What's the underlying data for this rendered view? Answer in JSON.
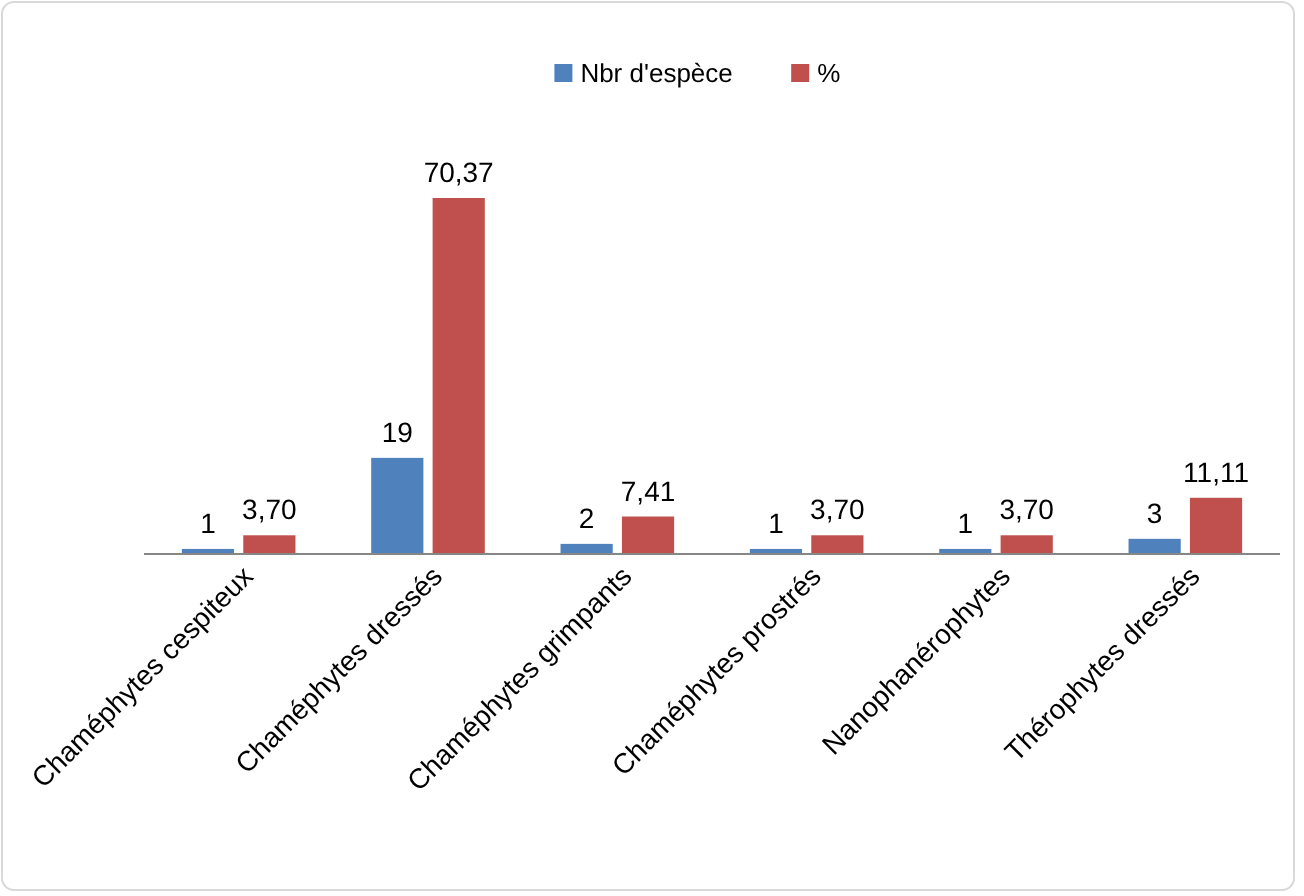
{
  "chart_data": {
    "type": "bar",
    "categories": [
      "Chaméphytes cespiteux",
      "Chaméphytes dressés",
      "Chaméphytes grimpants",
      "Chaméphytes prostrés",
      "Nanophanérophytes",
      "Thérophytes dressés"
    ],
    "series": [
      {
        "name": "Nbr d'espèce",
        "color": "#4f81bd",
        "values": [
          1,
          19,
          2,
          1,
          1,
          3
        ],
        "value_labels": [
          "1",
          "19",
          "2",
          "1",
          "1",
          "3"
        ]
      },
      {
        "name": "%",
        "color": "#c0504d",
        "values": [
          3.7,
          70.37,
          7.41,
          3.7,
          3.7,
          11.11
        ],
        "value_labels": [
          "3,70",
          "70,37",
          "7,41",
          "3,70",
          "3,70",
          "11,11"
        ]
      }
    ],
    "legend": "top"
  }
}
